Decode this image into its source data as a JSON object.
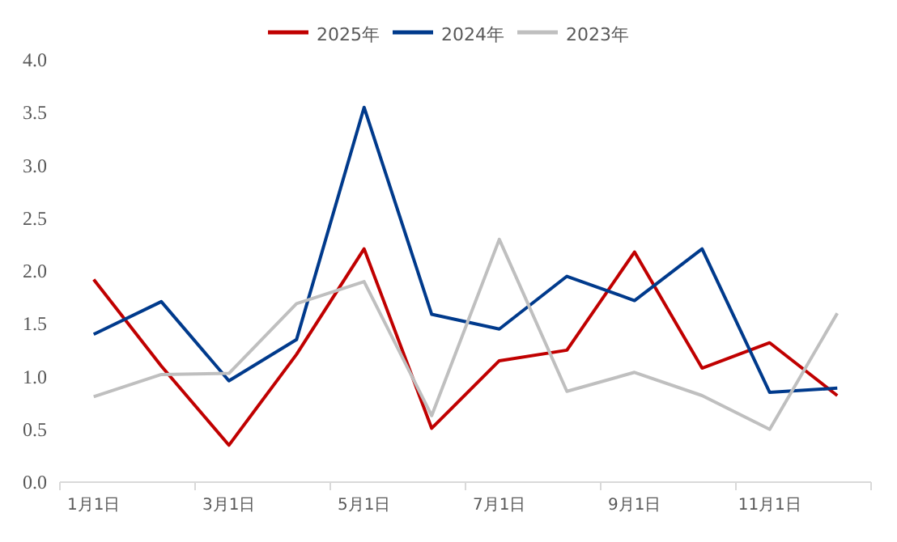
{
  "chart_data": {
    "type": "line",
    "categories": [
      "1月1日",
      null,
      "3月1日",
      null,
      "5月1日",
      null,
      "7月1日",
      null,
      "9月1日",
      null,
      "11月1日",
      null
    ],
    "series": [
      {
        "name": "2025年",
        "color": "#c00000",
        "values": [
          1.92,
          1.1,
          0.35,
          1.21,
          2.21,
          0.51,
          1.15,
          1.25,
          2.18,
          1.08,
          1.32,
          0.82
        ]
      },
      {
        "name": "2024年",
        "color": "#003a8c",
        "values": [
          1.4,
          1.71,
          0.96,
          1.35,
          3.55,
          1.59,
          1.45,
          1.95,
          1.72,
          2.21,
          0.85,
          0.89
        ]
      },
      {
        "name": "2023年",
        "color": "#bfbfbf",
        "values": [
          0.81,
          1.02,
          1.03,
          1.69,
          1.9,
          0.63,
          2.3,
          0.86,
          1.04,
          0.82,
          0.5,
          1.6
        ]
      }
    ],
    "ylim": [
      0,
      4
    ],
    "yticks": [
      {
        "value": 0,
        "label": "0.0"
      },
      {
        "value": 0.5,
        "label": "0.5"
      },
      {
        "value": 1,
        "label": "1.0"
      },
      {
        "value": 1.5,
        "label": "1.5"
      },
      {
        "value": 2,
        "label": "2.0"
      },
      {
        "value": 2.5,
        "label": "2.5"
      },
      {
        "value": 3,
        "label": "3.0"
      },
      {
        "value": 3.5,
        "label": "3.5"
      },
      {
        "value": 4,
        "label": "4.0"
      }
    ],
    "grid": false,
    "legend": "top",
    "marker": "none",
    "line_style": "solid"
  }
}
